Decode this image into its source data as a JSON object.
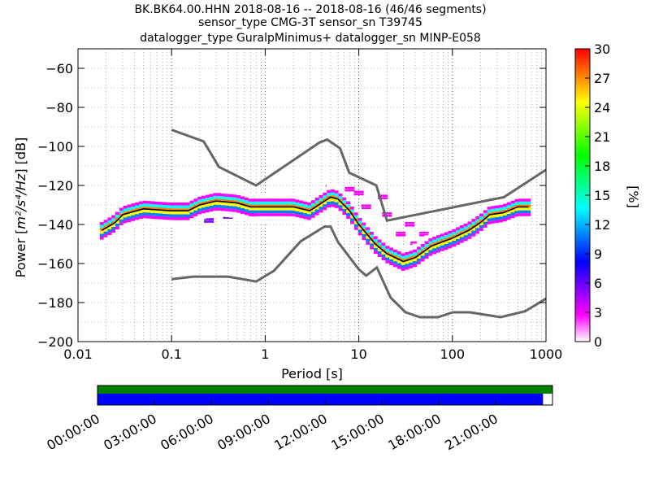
{
  "title_lines": [
    "BK.BK64.00.HHN   2018-08-16 -- 2018-08-16  (46/46 segments)",
    "sensor_type CMG-3T sensor_sn T39745",
    "datalogger_type GuralpMinimus+ datalogger_sn MINP-E058"
  ],
  "chart_data": [
    {
      "type": "heatmap",
      "title": "BK.BK64.00.HHN   2018-08-16 -- 2018-08-16  (46/46 segments)",
      "xlabel": "Period [s]",
      "ylabel_prefix": "Power [",
      "ylabel_unit": "m²/s⁴/Hz",
      "ylabel_suffix": "] [dB]",
      "x_scale": "log",
      "xlim": [
        0.01,
        1000
      ],
      "ylim": [
        -200,
        -50
      ],
      "x_ticks": [
        0.01,
        0.1,
        1,
        10,
        100,
        1000
      ],
      "x_tick_labels": [
        "0.01",
        "0.1",
        "1",
        "10",
        "100",
        "1000"
      ],
      "y_ticks": [
        -200,
        -180,
        -160,
        -140,
        -120,
        -100,
        -80,
        -60
      ],
      "y_tick_labels": [
        "−200",
        "−180",
        "−160",
        "−140",
        "−120",
        "−100",
        "−80",
        "−60"
      ],
      "grid": true,
      "colorbar": {
        "label": "[%]",
        "range": [
          0,
          30
        ],
        "ticks": [
          0,
          3,
          6,
          9,
          12,
          15,
          18,
          21,
          24,
          27,
          30
        ],
        "colors": [
          "#ffffff",
          "#ff00ff",
          "#8000ff",
          "#0000ff",
          "#0080ff",
          "#00ffff",
          "#00ff80",
          "#00ff00",
          "#80ff00",
          "#ffff00",
          "#ff8000",
          "#ff0000"
        ]
      },
      "nhnm": [
        [
          0.1,
          -91.5
        ],
        [
          0.22,
          -97.4
        ],
        [
          0.32,
          -110.5
        ],
        [
          0.8,
          -120
        ],
        [
          3.8,
          -98
        ],
        [
          4.6,
          -96.5
        ],
        [
          6.3,
          -101
        ],
        [
          7.9,
          -113.5
        ],
        [
          15.4,
          -120
        ],
        [
          20,
          -138
        ],
        [
          354.8,
          -126
        ],
        [
          1000,
          -112
        ]
      ],
      "nlnm": [
        [
          0.1,
          -168
        ],
        [
          0.17,
          -166.7
        ],
        [
          0.4,
          -166.7
        ],
        [
          0.8,
          -169.2
        ],
        [
          1.24,
          -163.7
        ],
        [
          2.4,
          -148.6
        ],
        [
          4.3,
          -141.1
        ],
        [
          5,
          -141.1
        ],
        [
          6,
          -149
        ],
        [
          10,
          -163
        ],
        [
          12,
          -166.2
        ],
        [
          15.6,
          -162
        ],
        [
          21.9,
          -177.5
        ],
        [
          31.6,
          -185
        ],
        [
          45,
          -187.5
        ],
        [
          70,
          -187.5
        ],
        [
          101,
          -185
        ],
        [
          154,
          -185
        ],
        [
          328,
          -187.5
        ],
        [
          600,
          -184.4
        ],
        [
          1000,
          -178
        ]
      ],
      "mode_line": [
        [
          0.018,
          -143
        ],
        [
          0.025,
          -139
        ],
        [
          0.03,
          -135
        ],
        [
          0.05,
          -132
        ],
        [
          0.1,
          -133
        ],
        [
          0.15,
          -133
        ],
        [
          0.2,
          -130
        ],
        [
          0.3,
          -128
        ],
        [
          0.5,
          -129
        ],
        [
          0.7,
          -131
        ],
        [
          1,
          -131
        ],
        [
          1.5,
          -131
        ],
        [
          2,
          -131
        ],
        [
          3,
          -133
        ],
        [
          4,
          -129
        ],
        [
          5,
          -126
        ],
        [
          6,
          -127
        ],
        [
          8,
          -133
        ],
        [
          10,
          -140
        ],
        [
          15,
          -150
        ],
        [
          20,
          -155
        ],
        [
          30,
          -159
        ],
        [
          40,
          -157
        ],
        [
          60,
          -151
        ],
        [
          100,
          -147
        ],
        [
          150,
          -143
        ],
        [
          200,
          -139
        ],
        [
          250,
          -135
        ],
        [
          350,
          -134
        ],
        [
          500,
          -131
        ],
        [
          650,
          -131
        ]
      ],
      "spread_cells": [
        {
          "p": 0.03,
          "y": -133,
          "v": 15
        },
        {
          "p": 0.04,
          "y": -130,
          "v": 6
        },
        {
          "p": 0.06,
          "y": -137,
          "v": 12
        },
        {
          "p": 0.08,
          "y": -131,
          "v": 4
        },
        {
          "p": 0.12,
          "y": -137,
          "v": 6
        },
        {
          "p": 0.2,
          "y": -126,
          "v": 3
        },
        {
          "p": 0.25,
          "y": -138,
          "v": 5
        },
        {
          "p": 0.3,
          "y": -123,
          "v": 2
        },
        {
          "p": 0.4,
          "y": -136,
          "v": 6
        },
        {
          "p": 0.55,
          "y": -125,
          "v": 2
        },
        {
          "p": 0.7,
          "y": -135,
          "v": 5
        },
        {
          "p": 1.2,
          "y": -127,
          "v": 4
        },
        {
          "p": 2,
          "y": -126,
          "v": 3
        },
        {
          "p": 5,
          "y": -121,
          "v": 2
        },
        {
          "p": 8,
          "y": -122,
          "v": 2
        },
        {
          "p": 10,
          "y": -124,
          "v": 3
        },
        {
          "p": 12,
          "y": -131,
          "v": 4
        },
        {
          "p": 14,
          "y": -121,
          "v": 1
        },
        {
          "p": 18,
          "y": -126,
          "v": 2
        },
        {
          "p": 20,
          "y": -135,
          "v": 3
        },
        {
          "p": 25,
          "y": -122,
          "v": 1
        },
        {
          "p": 28,
          "y": -145,
          "v": 2
        },
        {
          "p": 35,
          "y": -140,
          "v": 2
        },
        {
          "p": 40,
          "y": -150,
          "v": 3
        },
        {
          "p": 50,
          "y": -145,
          "v": 2
        },
        {
          "p": 30,
          "y": -164,
          "v": 12
        },
        {
          "p": 25,
          "y": -162,
          "v": 9
        }
      ]
    },
    {
      "type": "bar",
      "xlabel": "",
      "time_ticks": [
        "00:00:00",
        "03:00:00",
        "06:00:00",
        "09:00:00",
        "12:00:00",
        "15:00:00",
        "18:00:00",
        "21:00:00"
      ],
      "data_coverage": [
        [
          0,
          24
        ]
      ],
      "psd_coverage": [
        [
          0,
          23.5
        ]
      ],
      "colors": {
        "data": "#008000",
        "psd": "#0000ff"
      }
    }
  ]
}
